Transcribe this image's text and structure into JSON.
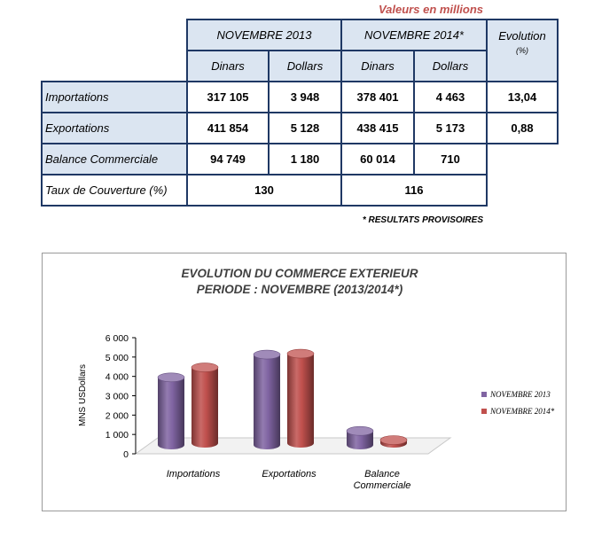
{
  "header": {
    "unit_note": "Valeurs en millions",
    "period_2013": "NOVEMBRE  2013",
    "period_2014": "NOVEMBRE 2014*",
    "evolution": "Evolution",
    "evolution_unit": "(%)",
    "dinars": "Dinars",
    "dollars": "Dollars"
  },
  "rows": [
    {
      "label": "Importations",
      "d2013": "317 105",
      "usd2013": "3 948",
      "d2014": "378 401",
      "usd2014": "4 463",
      "evolution": "13,04"
    },
    {
      "label": "Exportations",
      "d2013": "411 854",
      "usd2013": "5 128",
      "d2014": "438 415",
      "usd2014": "5 173",
      "evolution": "0,88"
    },
    {
      "label": "Balance Commerciale",
      "d2013": "94 749",
      "usd2013": "1 180",
      "d2014": "60 014",
      "usd2014": "710"
    }
  ],
  "coverage": {
    "label": "Taux de Couverture (%)",
    "v2013": "130",
    "v2014": "116"
  },
  "footnote": "* RESULTATS  PROVISOIRES",
  "chart_data": {
    "type": "bar",
    "title": [
      "EVOLUTION DU COMMERCE EXTERIEUR",
      "PERIODE : NOVEMBRE (2013/2014*)"
    ],
    "ylabel": "MNS USDollars",
    "categories": [
      "Importations",
      "Exportations",
      "Balance Commerciale"
    ],
    "category_lines": [
      [
        "Importations"
      ],
      [
        "Exportations"
      ],
      [
        "Balance",
        "Commerciale"
      ]
    ],
    "series": [
      {
        "name": "NOVEMBRE 2013",
        "values": [
          3948,
          5128,
          1180
        ],
        "color": "#8064a2"
      },
      {
        "name": "NOVEMBRE 2014*",
        "values": [
          4463,
          5173,
          710
        ],
        "color": "#c0504d"
      }
    ],
    "ylim": [
      0,
      6000
    ],
    "yticks": [
      "0",
      "1 000",
      "2 000",
      "3 000",
      "4 000",
      "5 000",
      "6 000"
    ],
    "legend": "right",
    "grid": false
  }
}
